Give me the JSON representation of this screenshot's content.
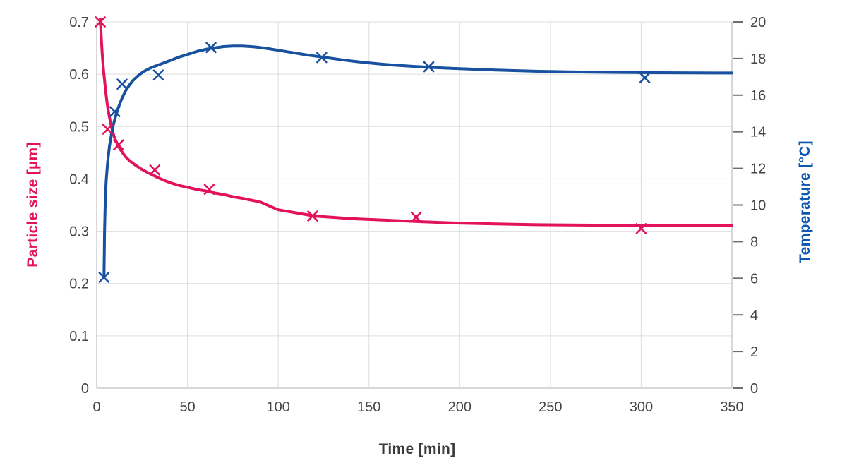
{
  "chart_data": {
    "type": "line",
    "title": "",
    "xlabel": "Time [min]",
    "x_ticks": [
      0,
      50,
      100,
      150,
      200,
      250,
      300,
      350
    ],
    "xlim": [
      0,
      350
    ],
    "grid": true,
    "legend": "none",
    "left_axis": {
      "label": "Particle size [µm]",
      "color": "#e2125c",
      "lim": [
        0,
        0.7
      ],
      "ticks": [
        "0",
        "0.1",
        "0.2",
        "0.3",
        "0.4",
        "0.5",
        "0.6",
        "0.7"
      ],
      "tick_values": [
        0,
        0.1,
        0.2,
        0.3,
        0.4,
        0.5,
        0.6,
        0.7
      ]
    },
    "right_axis": {
      "label": "Temperature [°C]",
      "color": "#0d57b0",
      "lim": [
        0,
        20
      ],
      "ticks": [
        "0",
        "2",
        "4",
        "6",
        "8",
        "10",
        "12",
        "14",
        "16",
        "18",
        "20"
      ],
      "tick_values": [
        0,
        2,
        4,
        6,
        8,
        10,
        12,
        14,
        16,
        18,
        20
      ]
    },
    "series": [
      {
        "name": "Particle size",
        "axis": "left",
        "color": "#e2125c",
        "marker": "x",
        "points": [
          [
            2,
            0.7
          ],
          [
            6,
            0.495
          ],
          [
            12,
            0.465
          ],
          [
            32,
            0.417
          ],
          [
            62,
            0.38
          ],
          [
            119,
            0.329
          ],
          [
            176,
            0.327
          ],
          [
            300,
            0.305
          ]
        ],
        "fit": [
          [
            2,
            0.705
          ],
          [
            2.5,
            0.672
          ],
          [
            3,
            0.641
          ],
          [
            3.5,
            0.618
          ],
          [
            4,
            0.599
          ],
          [
            5,
            0.565
          ],
          [
            6,
            0.538
          ],
          [
            7,
            0.518
          ],
          [
            8,
            0.501
          ],
          [
            9,
            0.488
          ],
          [
            10,
            0.477
          ],
          [
            12,
            0.462
          ],
          [
            14,
            0.451
          ],
          [
            16,
            0.442
          ],
          [
            18,
            0.435
          ],
          [
            21,
            0.427
          ],
          [
            24,
            0.42
          ],
          [
            27,
            0.414
          ],
          [
            30,
            0.409
          ],
          [
            34,
            0.402
          ],
          [
            38,
            0.396
          ],
          [
            42,
            0.391
          ],
          [
            46,
            0.387
          ],
          [
            50,
            0.384
          ],
          [
            55,
            0.38
          ],
          [
            60,
            0.377
          ],
          [
            65,
            0.373
          ],
          [
            70,
            0.37
          ],
          [
            75,
            0.366
          ],
          [
            80,
            0.363
          ],
          [
            90,
            0.356
          ],
          [
            100,
            0.341
          ],
          [
            110,
            0.335
          ],
          [
            120,
            0.329
          ],
          [
            130,
            0.3265
          ],
          [
            140,
            0.324
          ],
          [
            150,
            0.3225
          ],
          [
            160,
            0.321
          ],
          [
            170,
            0.3195
          ],
          [
            180,
            0.318
          ],
          [
            190,
            0.3165
          ],
          [
            200,
            0.3155
          ],
          [
            220,
            0.314
          ],
          [
            240,
            0.3125
          ],
          [
            260,
            0.3118
          ],
          [
            280,
            0.3114
          ],
          [
            300,
            0.3111
          ],
          [
            350,
            0.311
          ]
        ]
      },
      {
        "name": "Temperature",
        "axis": "right",
        "color": "#17519f",
        "marker": "x",
        "points": [
          [
            4,
            6.05
          ],
          [
            10,
            15.1
          ],
          [
            14,
            16.6
          ],
          [
            34,
            17.1
          ],
          [
            63,
            18.6
          ],
          [
            124,
            18.05
          ],
          [
            183,
            17.55
          ],
          [
            302,
            16.95
          ]
        ],
        "fit": [
          [
            4,
            6.0
          ],
          [
            4.3,
            8.5
          ],
          [
            4.7,
            10.2
          ],
          [
            5.2,
            11.3
          ],
          [
            6,
            12.3
          ],
          [
            7,
            13.2
          ],
          [
            8,
            13.8
          ],
          [
            9,
            14.3
          ],
          [
            10,
            14.7
          ],
          [
            12,
            15.35
          ],
          [
            14,
            15.85
          ],
          [
            16,
            16.25
          ],
          [
            18,
            16.55
          ],
          [
            20,
            16.8
          ],
          [
            23,
            17.08
          ],
          [
            26,
            17.3
          ],
          [
            30,
            17.5
          ],
          [
            34,
            17.65
          ],
          [
            38,
            17.8
          ],
          [
            42,
            17.95
          ],
          [
            46,
            18.1
          ],
          [
            50,
            18.22
          ],
          [
            55,
            18.38
          ],
          [
            60,
            18.5
          ],
          [
            65,
            18.58
          ],
          [
            70,
            18.65
          ],
          [
            75,
            18.68
          ],
          [
            80,
            18.68
          ],
          [
            85,
            18.65
          ],
          [
            90,
            18.6
          ],
          [
            95,
            18.53
          ],
          [
            100,
            18.45
          ],
          [
            105,
            18.37
          ],
          [
            110,
            18.29
          ],
          [
            115,
            18.21
          ],
          [
            120,
            18.14
          ],
          [
            125,
            18.07
          ],
          [
            130,
            18.0
          ],
          [
            135,
            17.93
          ],
          [
            140,
            17.87
          ],
          [
            145,
            17.81
          ],
          [
            150,
            17.76
          ],
          [
            155,
            17.71
          ],
          [
            160,
            17.67
          ],
          [
            165,
            17.63
          ],
          [
            170,
            17.6
          ],
          [
            175,
            17.57
          ],
          [
            180,
            17.54
          ],
          [
            185,
            17.51
          ],
          [
            190,
            17.49
          ],
          [
            195,
            17.47
          ],
          [
            200,
            17.45
          ],
          [
            210,
            17.41
          ],
          [
            220,
            17.37
          ],
          [
            230,
            17.34
          ],
          [
            240,
            17.31
          ],
          [
            250,
            17.29
          ],
          [
            260,
            17.27
          ],
          [
            270,
            17.26
          ],
          [
            280,
            17.25
          ],
          [
            290,
            17.24
          ],
          [
            300,
            17.23
          ],
          [
            320,
            17.22
          ],
          [
            350,
            17.21
          ]
        ]
      }
    ],
    "style_colors": {
      "gridline": "#dedede",
      "axis_line": "#cccccc",
      "tick_mark": "#6e6e6e",
      "tick_text": "#454545"
    }
  }
}
